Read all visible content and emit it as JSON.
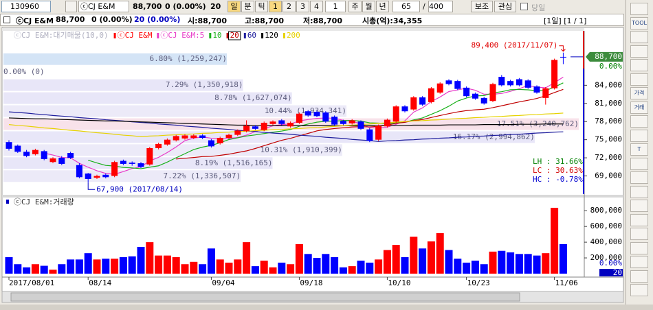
{
  "toolbar": {
    "code": "130960",
    "name": "ⓒCJ E&M",
    "price": "88,700",
    "change": "0 (0.00%)",
    "count": "20",
    "periods": [
      "일",
      "분",
      "틱",
      "1",
      "2",
      "3",
      "4"
    ],
    "tick_n": "1",
    "ranges": [
      "주",
      "월",
      "년"
    ],
    "visible": "65",
    "slash": "/",
    "total": "400",
    "buttons": [
      "보조",
      "관심"
    ],
    "checkbox": "당일"
  },
  "info": {
    "name": "ⓒCJ E&M",
    "price": "88,700",
    "change": "0 (0.00%)",
    "volume": "20 (0.00%)",
    "open": "시:88,700",
    "high": "고:88,700",
    "low": "저:88,700",
    "cap": "시총(억):34,355",
    "view": "[1일] [1 / 1]"
  },
  "side_tools": [
    "TOOL",
    "가격",
    "거래",
    "T"
  ],
  "chart_data": [
    {
      "type": "candlestick",
      "title": "ⓒCJ E&M:대기매물(10,0)",
      "candle_name": "ⓒCJ E&M",
      "up_color": "#ff0000",
      "down_color": "#0000ff",
      "categories": [
        "2017/08/01",
        null,
        null,
        null,
        null,
        null,
        null,
        null,
        null,
        "08/14",
        null,
        null,
        null,
        null,
        null,
        null,
        null,
        null,
        null,
        null,
        null,
        null,
        null,
        "09/04",
        null,
        null,
        null,
        null,
        null,
        null,
        null,
        null,
        null,
        "09/18",
        null,
        null,
        null,
        null,
        null,
        null,
        null,
        null,
        null,
        "10/10",
        null,
        null,
        null,
        null,
        null,
        null,
        null,
        null,
        "10/23",
        null,
        null,
        null,
        null,
        null,
        null,
        null,
        null,
        null,
        "11/06",
        null
      ],
      "open": [
        74600,
        74000,
        73000,
        72600,
        73100,
        71300,
        72000,
        72800,
        70800,
        69400,
        68700,
        69200,
        69000,
        71500,
        71200,
        71100,
        70900,
        73600,
        74200,
        74900,
        75200,
        75300,
        75700,
        74900,
        74400,
        75300,
        75800,
        76400,
        77200,
        76600,
        77600,
        78200,
        77200,
        77800,
        79700,
        79600,
        79500,
        78800,
        78100,
        77700,
        78000,
        76700,
        75000,
        77200,
        78000,
        80500,
        80000,
        82000,
        81200,
        82800,
        84800,
        84700,
        83600,
        82600,
        81900,
        81400,
        85400,
        84700,
        85000,
        84800,
        83800,
        81900,
        83500,
        88700
      ],
      "high": [
        74900,
        74200,
        73300,
        73500,
        73300,
        72100,
        72300,
        73000,
        71100,
        69500,
        69200,
        69400,
        71500,
        71700,
        71400,
        71300,
        73800,
        74500,
        75200,
        75800,
        75900,
        75900,
        75900,
        75100,
        75500,
        76000,
        76700,
        78200,
        77400,
        78000,
        78200,
        78400,
        78000,
        79500,
        79900,
        79800,
        79700,
        79000,
        78300,
        78400,
        78200,
        76900,
        77500,
        78500,
        80700,
        80700,
        82200,
        82200,
        83700,
        84500,
        85000,
        84900,
        83800,
        82800,
        82100,
        84400,
        85700,
        84900,
        85200,
        85000,
        84000,
        83700,
        88400,
        89400
      ],
      "low": [
        73200,
        72800,
        72100,
        72400,
        71600,
        71100,
        70800,
        71800,
        68600,
        67900,
        68500,
        68600,
        68800,
        70800,
        70700,
        70300,
        70700,
        73400,
        74000,
        74700,
        75000,
        75100,
        75100,
        73700,
        74200,
        75100,
        75600,
        76200,
        76600,
        76400,
        77400,
        77400,
        77000,
        77600,
        78800,
        78700,
        77800,
        77300,
        77400,
        77500,
        76600,
        74600,
        74800,
        77000,
        77800,
        79500,
        79800,
        80600,
        81000,
        82600,
        84000,
        83200,
        82000,
        81600,
        80800,
        81200,
        83800,
        83800,
        83800,
        83400,
        82600,
        80800,
        83300,
        87500
      ],
      "close": [
        73500,
        73000,
        72300,
        73300,
        71800,
        71900,
        71000,
        72000,
        68800,
        68500,
        69000,
        68800,
        71300,
        71000,
        71000,
        70500,
        73600,
        74300,
        75000,
        75600,
        75700,
        75700,
        75300,
        73900,
        75300,
        75800,
        76500,
        77300,
        76800,
        77800,
        78000,
        77600,
        77800,
        79300,
        79000,
        78900,
        78000,
        77500,
        77600,
        78200,
        76800,
        74800,
        77300,
        78300,
        80500,
        79700,
        82000,
        80800,
        83500,
        84300,
        84200,
        83400,
        82200,
        81800,
        81000,
        84200,
        84000,
        84000,
        84000,
        83600,
        82800,
        83500,
        88200,
        88700
      ],
      "series": [
        {
          "name": "ⓒCJ E&M:5",
          "color": "#e83cc8",
          "period": 5
        },
        {
          "name": "10",
          "color": "#18b018",
          "period": 10
        },
        {
          "name": "20",
          "color": "#c00000",
          "period": 20
        },
        {
          "name": "60",
          "color": "#1c1c9c",
          "values": [
            79600,
            79500,
            79400,
            79250,
            79150,
            79000,
            78900,
            78800,
            78650,
            78550,
            78450,
            78300,
            78200,
            78100,
            77950,
            77850,
            77750,
            77600,
            77500,
            77400,
            77250,
            77150,
            77050,
            76900,
            76800,
            76700,
            76550,
            76450,
            76350,
            76200,
            76100,
            76000,
            75900,
            75750,
            75650,
            75550,
            75400,
            75300,
            75200,
            75050,
            74950,
            74850,
            74700,
            74800,
            74850,
            74950,
            75000,
            75100,
            75150,
            75250,
            75300,
            75400,
            75450,
            75550,
            75600,
            75700,
            75750,
            75850,
            75900,
            76000,
            76100,
            76150,
            76250,
            76300
          ]
        },
        {
          "name": "120",
          "color": "#000000",
          "values": [
            78600,
            78550,
            78500,
            78450,
            78450,
            78400,
            78350,
            78300,
            78250,
            78200,
            78150,
            78100,
            78100,
            78050,
            78000,
            77950,
            77900,
            77850,
            77800,
            77750,
            77700,
            77650,
            77600,
            77550,
            77500,
            77450,
            77400,
            77400,
            77350,
            77350,
            77300,
            77300,
            77300,
            77300,
            77300,
            77300,
            77300,
            77300,
            77300,
            77300,
            77300,
            77300,
            77300,
            77350,
            77350,
            77350,
            77400,
            77400,
            77400,
            77400,
            77450,
            77450,
            77450,
            77450,
            77500,
            77500,
            77500,
            77500,
            77550,
            77550,
            77550,
            77600,
            77600,
            77600
          ]
        },
        {
          "name": "200",
          "color": "#e6d200",
          "values": [
            77500,
            77350,
            77250,
            77100,
            76950,
            76850,
            76700,
            76550,
            76450,
            76300,
            76150,
            76050,
            75900,
            75750,
            75650,
            75500,
            75600,
            75650,
            75750,
            75800,
            75900,
            75950,
            76050,
            76100,
            76200,
            76250,
            76350,
            76400,
            76500,
            76550,
            76650,
            76700,
            76800,
            76850,
            76950,
            77000,
            77100,
            77200,
            77300,
            77400,
            77500,
            77600,
            77700,
            77800,
            77900,
            78000,
            78100,
            78150,
            78250,
            78300,
            78400,
            78500,
            78550,
            78650,
            78700,
            78800,
            78850,
            78950,
            79000,
            79100,
            79150,
            79250,
            79300,
            79400
          ]
        }
      ],
      "profile": [
        {
          "label": "6.80% (1,259,247)",
          "value": 6.8
        },
        {
          "label": "0.00% (0)",
          "value": 0
        },
        {
          "label": "7.29% (1,350,918)",
          "value": 7.29
        },
        {
          "label": "8.78% (1,627,074)",
          "value": 8.78
        },
        {
          "label": "10.44% (1,934,341)",
          "value": 10.44
        },
        {
          "label": "17.51% (3,240,762)",
          "value": 17.51
        },
        {
          "label": "16.17% (2,994,862)",
          "value": 16.17
        },
        {
          "label": "10.31% (1,910,399)",
          "value": 10.31
        },
        {
          "label": "8.19% (1,516,165)",
          "value": 8.19
        },
        {
          "label": "7.22% (1,336,507)",
          "value": 7.22
        }
      ],
      "annotations": [
        {
          "text": "89,400 (2017/11/07)",
          "value": 89400,
          "color": "#e00000"
        },
        {
          "text": "67,900 (2017/08/14)",
          "value": 67900,
          "color": "#0000c0"
        }
      ],
      "last": {
        "label": "88,700",
        "value": 88700,
        "change": "0.00%"
      },
      "stats": [
        {
          "text": "LH : 31.66%",
          "color": "#008000"
        },
        {
          "text": "LC : 30.63%",
          "color": "#d00000"
        },
        {
          "text": "HC : -0.78%",
          "color": "#0000d0"
        }
      ],
      "ylim": [
        66000,
        93000
      ],
      "yticks": [
        {
          "value": 84000,
          "label": "84,000"
        },
        {
          "value": 81000,
          "label": "81,000"
        },
        {
          "value": 78000,
          "label": "78,000"
        },
        {
          "value": 75000,
          "label": "75,000"
        },
        {
          "value": 72000,
          "label": "72,000"
        },
        {
          "value": 69000,
          "label": "69,000"
        }
      ]
    },
    {
      "type": "bar",
      "title": "ⓒCJ E&M:거래량",
      "values": [
        210000,
        120000,
        80000,
        120000,
        100000,
        50000,
        120000,
        180000,
        180000,
        260000,
        180000,
        190000,
        190000,
        210000,
        220000,
        340000,
        400000,
        230000,
        230000,
        210000,
        120000,
        150000,
        120000,
        320000,
        180000,
        140000,
        180000,
        400000,
        95000,
        165000,
        80000,
        140000,
        120000,
        375000,
        250000,
        200000,
        250000,
        210000,
        80000,
        95000,
        165000,
        140000,
        180000,
        300000,
        365000,
        210000,
        470000,
        320000,
        410000,
        515000,
        300000,
        190000,
        140000,
        165000,
        120000,
        280000,
        290000,
        270000,
        250000,
        250000,
        230000,
        260000,
        837000,
        375000
      ],
      "ylim": [
        0,
        950000
      ],
      "yticks": [
        {
          "value": 800000,
          "label": "800,000"
        },
        {
          "value": 600000,
          "label": "600,000"
        },
        {
          "value": 400000,
          "label": "400,000"
        },
        {
          "value": 200000,
          "label": "200,000"
        }
      ],
      "last_change": "0.00%",
      "last_label": "20"
    }
  ]
}
